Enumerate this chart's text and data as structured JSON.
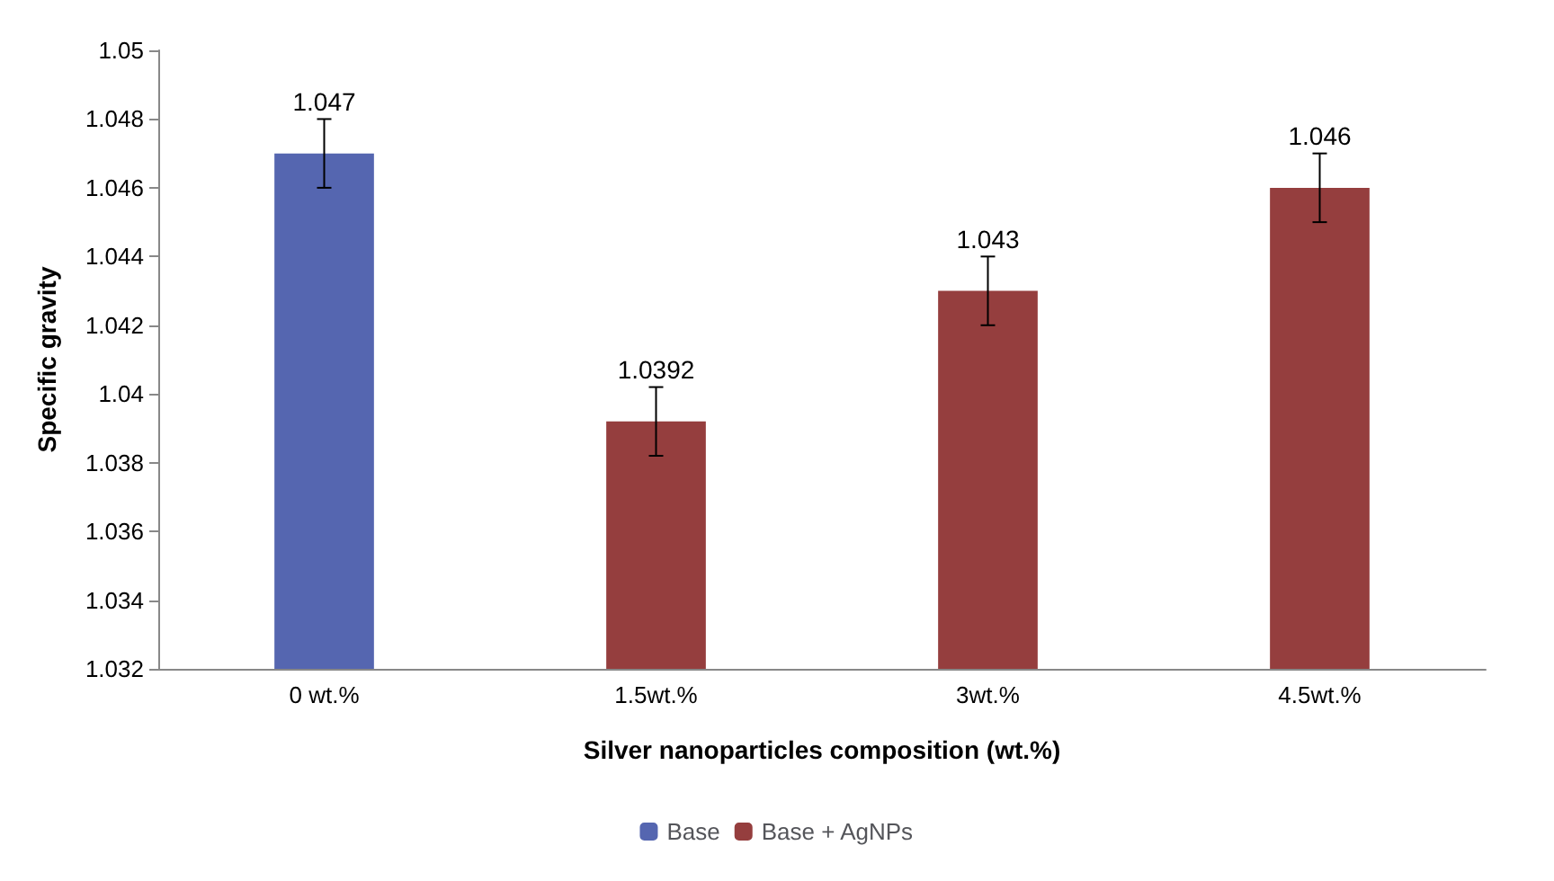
{
  "chart_data": {
    "type": "bar",
    "xlabel": "Silver nanoparticles composition (wt.%)",
    "ylabel": "Specific gravity",
    "categories": [
      "0 wt.%",
      "1.5wt.%",
      "3wt.%",
      "4.5wt.%"
    ],
    "series": [
      {
        "name": "Base",
        "color": "#5566b0",
        "values": [
          1.047,
          null,
          null,
          null
        ],
        "errors": [
          0.001,
          null,
          null,
          null
        ]
      },
      {
        "name": "Base + AgNPs",
        "color": "#953e3e",
        "values": [
          null,
          1.0392,
          1.043,
          1.046
        ],
        "errors": [
          null,
          0.001,
          0.001,
          0.001
        ]
      }
    ],
    "ylim": [
      1.032,
      1.05
    ],
    "yticks": [
      1.032,
      1.034,
      1.036,
      1.038,
      1.04,
      1.042,
      1.044,
      1.046,
      1.048,
      1.05
    ],
    "grid": false,
    "legend": "bottom",
    "data_labels": true
  }
}
